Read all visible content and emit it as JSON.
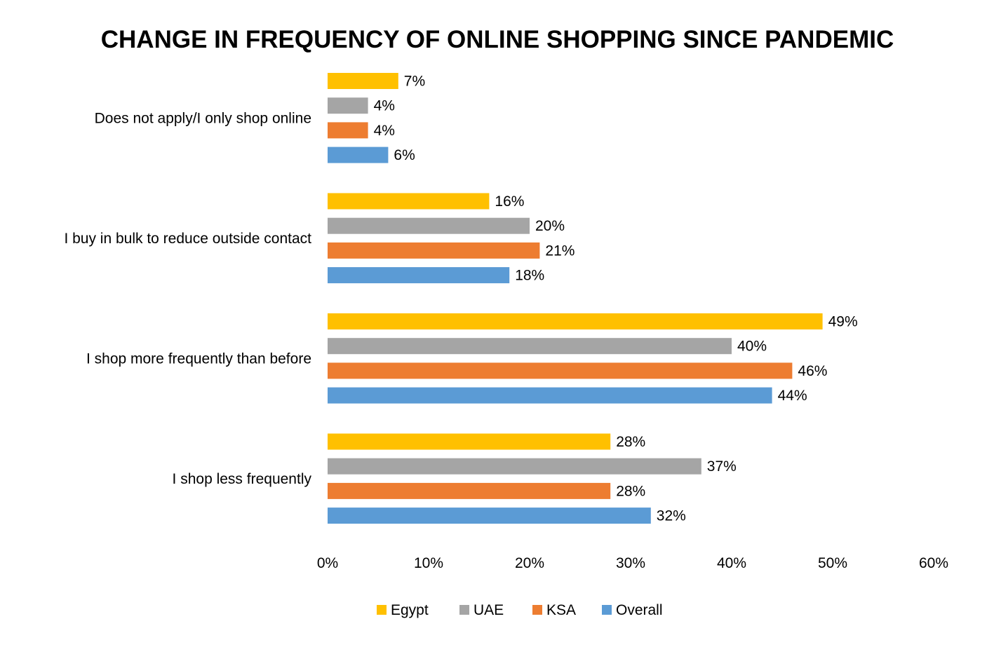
{
  "chart_data": {
    "type": "bar",
    "orientation": "horizontal",
    "title": "CHANGE IN FREQUENCY OF ONLINE SHOPPING SINCE PANDEMIC",
    "categories": [
      "Does not apply/I only shop online",
      "I buy in bulk to reduce outside contact",
      "I shop more frequently than before",
      "I shop less frequently"
    ],
    "series": [
      {
        "name": "Egypt",
        "color": "#FFC000",
        "values": [
          7,
          16,
          49,
          28
        ]
      },
      {
        "name": "UAE",
        "color": "#A5A5A5",
        "values": [
          4,
          20,
          40,
          37
        ]
      },
      {
        "name": "KSA",
        "color": "#ED7D31",
        "values": [
          4,
          21,
          46,
          28
        ]
      },
      {
        "name": "Overall",
        "color": "#5B9BD5",
        "values": [
          6,
          18,
          44,
          32
        ]
      }
    ],
    "value_suffix": "%",
    "xlim": [
      0,
      60
    ],
    "xticks": [
      "0%",
      "10%",
      "20%",
      "30%",
      "40%",
      "50%",
      "60%"
    ],
    "grid": false,
    "legend_position": "bottom"
  }
}
